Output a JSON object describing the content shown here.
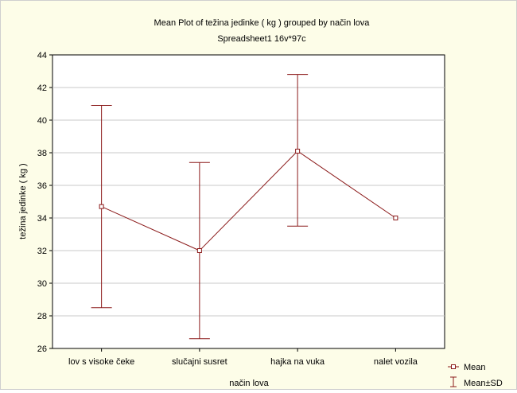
{
  "chart_data": {
    "type": "line",
    "title": "Mean Plot of težina jedinke ( kg ) grouped by  način lova",
    "subtitle": "Spreadsheet1 16v*97c",
    "xlabel": "način lova",
    "ylabel": "težina jedinke ( kg )",
    "categories": [
      "lov s visoke čeke",
      "slučajni susret",
      "hajka na vuka",
      "nalet vozila"
    ],
    "ylim": [
      26,
      44
    ],
    "yticks": [
      "26",
      "28",
      "30",
      "32",
      "34",
      "36",
      "38",
      "40",
      "42",
      "44"
    ],
    "grid": true,
    "series": [
      {
        "name": "Mean",
        "values": [
          34.7,
          32.0,
          38.1,
          34.0
        ],
        "sd_low": [
          28.5,
          26.6,
          33.5,
          34.0
        ],
        "sd_high": [
          40.9,
          37.4,
          42.8,
          34.0
        ],
        "color": "#8b1a1a"
      }
    ],
    "legend": {
      "position": "bottom-right",
      "mean_label": "Mean",
      "sd_label": "Mean±SD"
    }
  }
}
